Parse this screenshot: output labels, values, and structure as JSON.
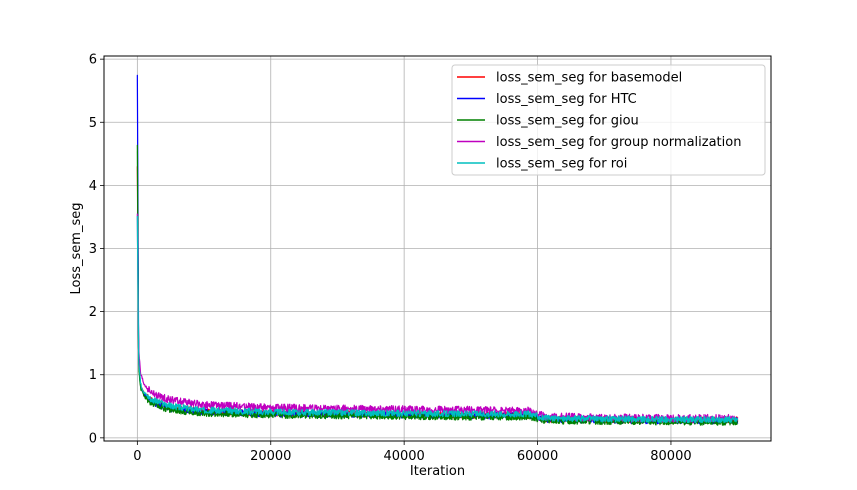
{
  "chart_data": {
    "type": "line",
    "title": "",
    "xlabel": "Iteration",
    "ylabel": "Loss_sem_seg",
    "xlim": [
      -5000,
      95000
    ],
    "ylim": [
      -0.05,
      6.05
    ],
    "xticks": [
      0,
      20000,
      40000,
      60000,
      80000
    ],
    "xtick_labels": [
      "0",
      "20000",
      "40000",
      "60000",
      "80000"
    ],
    "yticks": [
      0,
      1,
      2,
      3,
      4,
      5,
      6
    ],
    "ytick_labels": [
      "0",
      "1",
      "2",
      "3",
      "4",
      "5",
      "6"
    ],
    "grid": true,
    "legend_position": "top-right",
    "x": [
      0,
      200,
      500,
      1000,
      2000,
      3000,
      5000,
      10000,
      20000,
      30000,
      40000,
      50000,
      59000,
      61000,
      70000,
      80000,
      90000
    ],
    "series": [
      {
        "name": "loss_sem_seg for basemodel",
        "color": "#ff0000",
        "noise": 0.05,
        "values": [
          4.3,
          1.15,
          0.82,
          0.7,
          0.6,
          0.55,
          0.48,
          0.42,
          0.39,
          0.38,
          0.37,
          0.36,
          0.36,
          0.3,
          0.29,
          0.28,
          0.28
        ]
      },
      {
        "name": "loss_sem_seg for HTC",
        "color": "#0000ff",
        "noise": 0.05,
        "values": [
          5.75,
          1.2,
          0.8,
          0.68,
          0.58,
          0.53,
          0.46,
          0.41,
          0.38,
          0.37,
          0.36,
          0.35,
          0.35,
          0.29,
          0.28,
          0.27,
          0.27
        ]
      },
      {
        "name": "loss_sem_seg for giou",
        "color": "#008000",
        "noise": 0.05,
        "values": [
          4.55,
          1.1,
          0.78,
          0.66,
          0.56,
          0.51,
          0.44,
          0.39,
          0.36,
          0.35,
          0.34,
          0.33,
          0.33,
          0.27,
          0.26,
          0.25,
          0.25
        ]
      },
      {
        "name": "loss_sem_seg for group normalization",
        "color": "#bf00bf",
        "noise": 0.06,
        "values": [
          3.5,
          1.38,
          1.0,
          0.85,
          0.72,
          0.66,
          0.6,
          0.52,
          0.48,
          0.46,
          0.45,
          0.44,
          0.43,
          0.34,
          0.32,
          0.31,
          0.31
        ]
      },
      {
        "name": "loss_sem_seg for roi",
        "color": "#00bfbf",
        "noise": 0.05,
        "values": [
          3.5,
          1.2,
          0.85,
          0.72,
          0.62,
          0.57,
          0.5,
          0.44,
          0.41,
          0.4,
          0.39,
          0.38,
          0.38,
          0.31,
          0.3,
          0.29,
          0.29
        ]
      }
    ]
  }
}
